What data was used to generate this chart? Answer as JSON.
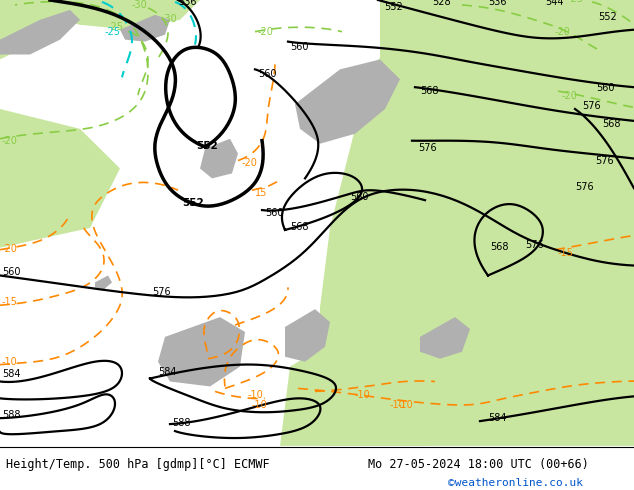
{
  "title_left": "Height/Temp. 500 hPa [gdmp][°C] ECMWF",
  "title_right": "Mo 27-05-2024 18:00 UTC (00+66)",
  "watermark": "©weatheronline.co.uk",
  "bg_color_light": "#dcdcdc",
  "bg_color_green": "#c8e6a0",
  "bg_color_grey": "#b0b0b0",
  "contour_color_black": "#000000",
  "contour_color_orange": "#ff8800",
  "contour_color_green": "#88cc44",
  "contour_color_cyan": "#00cccc",
  "figsize": [
    6.34,
    4.9
  ],
  "dpi": 100,
  "bottom_bar_height": 0.09
}
